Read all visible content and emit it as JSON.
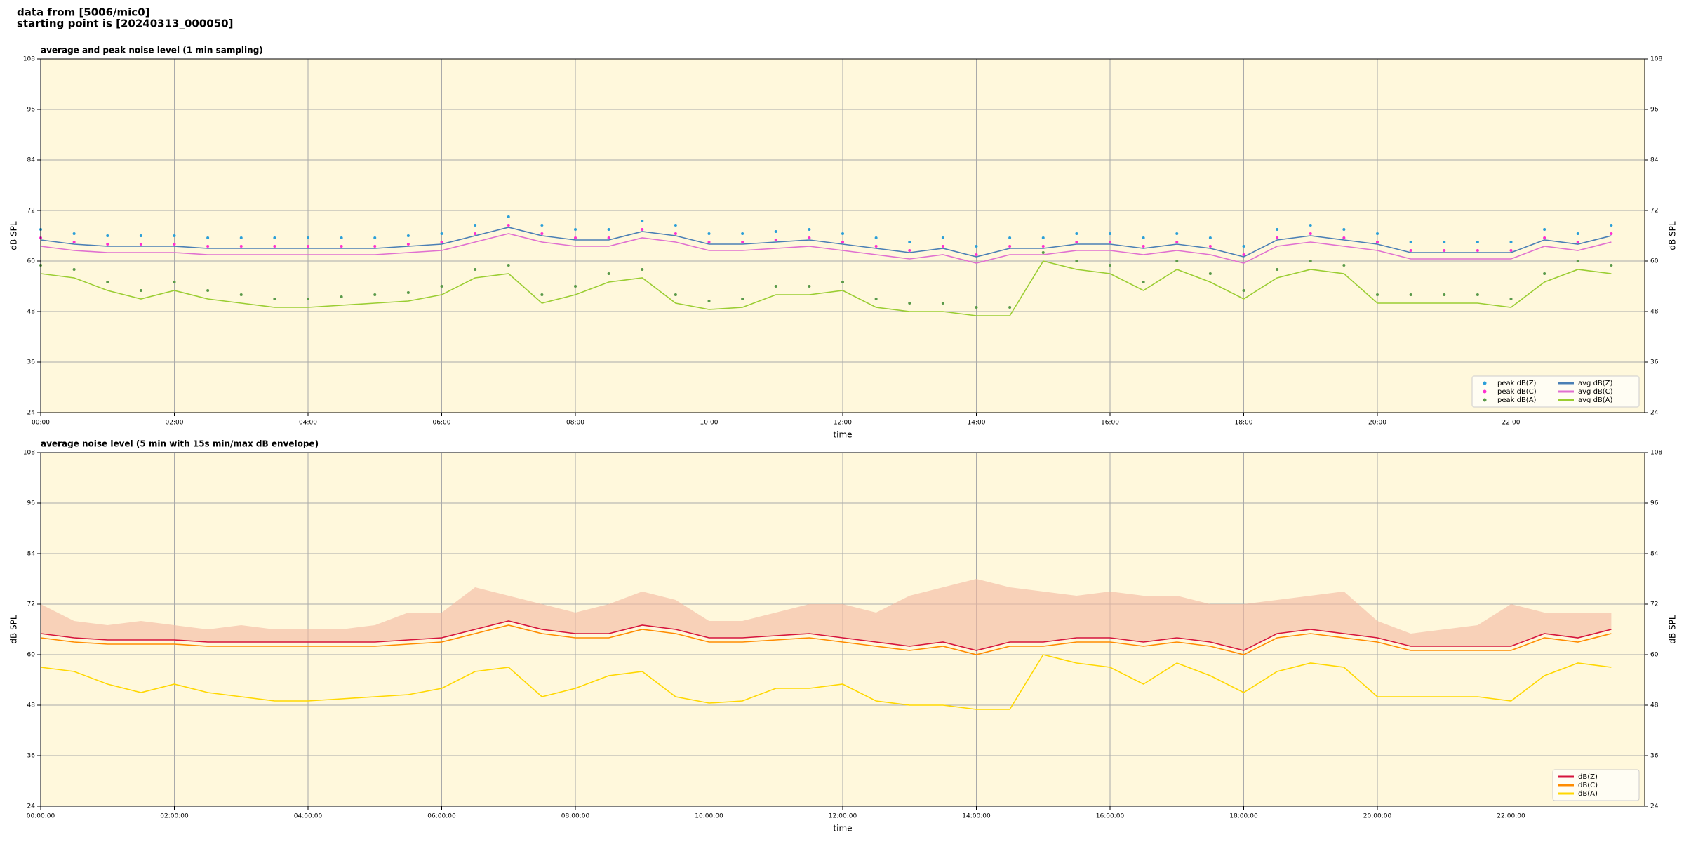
{
  "header": [
    "data from [5006/mic0]",
    "starting point is [20240313_000050]"
  ],
  "chart_data": [
    {
      "type": "line",
      "title": "average and peak noise level (1 min sampling)",
      "xlabel": "time",
      "ylabel": "dB SPL",
      "x": [
        0,
        0.5,
        1,
        1.5,
        2,
        2.5,
        3,
        3.5,
        4,
        4.5,
        5,
        5.5,
        6,
        6.5,
        7,
        7.5,
        8,
        8.5,
        9,
        9.5,
        10,
        10.5,
        11,
        11.5,
        12,
        12.5,
        13,
        13.5,
        14,
        14.5,
        15,
        15.5,
        16,
        16.5,
        17,
        17.5,
        18,
        18.5,
        19,
        19.5,
        20,
        20.5,
        21,
        21.5,
        22,
        22.5,
        23,
        23.5
      ],
      "xlim": [
        0,
        24
      ],
      "xticks": [
        {
          "value": 0,
          "label": "00:00"
        },
        {
          "value": 2,
          "label": "02:00"
        },
        {
          "value": 4,
          "label": "04:00"
        },
        {
          "value": 6,
          "label": "06:00"
        },
        {
          "value": 8,
          "label": "08:00"
        },
        {
          "value": 10,
          "label": "10:00"
        },
        {
          "value": 12,
          "label": "12:00"
        },
        {
          "value": 14,
          "label": "14:00"
        },
        {
          "value": 16,
          "label": "16:00"
        },
        {
          "value": 18,
          "label": "18:00"
        },
        {
          "value": 20,
          "label": "20:00"
        },
        {
          "value": 22,
          "label": "22:00"
        }
      ],
      "ylim": [
        24,
        108
      ],
      "yticks": [
        24,
        36,
        48,
        60,
        72,
        84,
        96,
        108
      ],
      "grid": true,
      "legend": "lower right",
      "series": [
        {
          "name": "peak dB(Z)",
          "kind": "scatter",
          "color": "#2b9fd8",
          "values": [
            67.5,
            66.5,
            66,
            66,
            66,
            65.5,
            65.5,
            65.5,
            65.5,
            65.5,
            65.5,
            66,
            66.5,
            68.5,
            70.5,
            68.5,
            67.5,
            67.5,
            69.5,
            68.5,
            66.5,
            66.5,
            67,
            67.5,
            66.5,
            65.5,
            64.5,
            65.5,
            63.5,
            65.5,
            65.5,
            66.5,
            66.5,
            65.5,
            66.5,
            65.5,
            63.5,
            67.5,
            68.5,
            67.5,
            66.5,
            64.5,
            64.5,
            64.5,
            64.5,
            67.5,
            66.5,
            68.5
          ]
        },
        {
          "name": "peak dB(C)",
          "kind": "scatter",
          "color": "#ff2fd0",
          "values": [
            65.5,
            64.5,
            64,
            64,
            64,
            63.5,
            63.5,
            63.5,
            63.5,
            63.5,
            63.5,
            64,
            64.5,
            66.5,
            68.5,
            66.5,
            65.5,
            65.5,
            67.5,
            66.5,
            64.5,
            64.5,
            65,
            65.5,
            64.5,
            63.5,
            62.5,
            63.5,
            61.5,
            63.5,
            63.5,
            64.5,
            64.5,
            63.5,
            64.5,
            63.5,
            61.5,
            65.5,
            66.5,
            65.5,
            64.5,
            62.5,
            62.5,
            62.5,
            62.5,
            65.5,
            64.5,
            66.5
          ]
        },
        {
          "name": "peak dB(A)",
          "kind": "scatter",
          "color": "#5a9a4a",
          "values": [
            59,
            58,
            55,
            53,
            55,
            53,
            52,
            51,
            51,
            51.5,
            52,
            52.5,
            54,
            58,
            59,
            52,
            54,
            57,
            58,
            52,
            50.5,
            51,
            54,
            54,
            55,
            51,
            50,
            50,
            49,
            49,
            62,
            60,
            59,
            55,
            60,
            57,
            53,
            58,
            60,
            59,
            52,
            52,
            52,
            52,
            51,
            57,
            60,
            59
          ]
        },
        {
          "name": "avg dB(Z)",
          "kind": "line",
          "color": "#4a7fb5",
          "values": [
            65,
            64,
            63.5,
            63.5,
            63.5,
            63,
            63,
            63,
            63,
            63,
            63,
            63.5,
            64,
            66,
            68,
            66,
            65,
            65,
            67,
            66,
            64,
            64,
            64.5,
            65,
            64,
            63,
            62,
            63,
            61,
            63,
            63,
            64,
            64,
            63,
            64,
            63,
            61,
            65,
            66,
            65,
            64,
            62,
            62,
            62,
            62,
            65,
            64,
            66
          ]
        },
        {
          "name": "avg dB(C)",
          "kind": "line",
          "color": "#e070d0",
          "values": [
            63.5,
            62.5,
            62,
            62,
            62,
            61.5,
            61.5,
            61.5,
            61.5,
            61.5,
            61.5,
            62,
            62.5,
            64.5,
            66.5,
            64.5,
            63.5,
            63.5,
            65.5,
            64.5,
            62.5,
            62.5,
            63,
            63.5,
            62.5,
            61.5,
            60.5,
            61.5,
            59.5,
            61.5,
            61.5,
            62.5,
            62.5,
            61.5,
            62.5,
            61.5,
            59.5,
            63.5,
            64.5,
            63.5,
            62.5,
            60.5,
            60.5,
            60.5,
            60.5,
            63.5,
            62.5,
            64.5
          ]
        },
        {
          "name": "avg dB(A)",
          "kind": "line",
          "color": "#9acd32",
          "values": [
            57,
            56,
            53,
            51,
            53,
            51,
            50,
            49,
            49,
            49.5,
            50,
            50.5,
            52,
            56,
            57,
            50,
            52,
            55,
            56,
            50,
            48.5,
            49,
            52,
            52,
            53,
            49,
            48,
            48,
            47,
            47,
            60,
            58,
            57,
            53,
            58,
            55,
            51,
            56,
            58,
            57,
            50,
            50,
            50,
            50,
            49,
            55,
            58,
            57
          ]
        }
      ]
    },
    {
      "type": "line",
      "title": "average noise level (5 min with 15s min/max dB envelope)",
      "xlabel": "time",
      "ylabel": "dB SPL",
      "x": [
        0,
        0.5,
        1,
        1.5,
        2,
        2.5,
        3,
        3.5,
        4,
        4.5,
        5,
        5.5,
        6,
        6.5,
        7,
        7.5,
        8,
        8.5,
        9,
        9.5,
        10,
        10.5,
        11,
        11.5,
        12,
        12.5,
        13,
        13.5,
        14,
        14.5,
        15,
        15.5,
        16,
        16.5,
        17,
        17.5,
        18,
        18.5,
        19,
        19.5,
        20,
        20.5,
        21,
        21.5,
        22,
        22.5,
        23,
        23.5
      ],
      "xlim": [
        0,
        24
      ],
      "xticks": [
        {
          "value": 0,
          "label": "00:00:00"
        },
        {
          "value": 2,
          "label": "02:00:00"
        },
        {
          "value": 4,
          "label": "04:00:00"
        },
        {
          "value": 6,
          "label": "06:00:00"
        },
        {
          "value": 8,
          "label": "08:00:00"
        },
        {
          "value": 10,
          "label": "10:00:00"
        },
        {
          "value": 12,
          "label": "12:00:00"
        },
        {
          "value": 14,
          "label": "14:00:00"
        },
        {
          "value": 16,
          "label": "16:00:00"
        },
        {
          "value": 18,
          "label": "18:00:00"
        },
        {
          "value": 20,
          "label": "20:00:00"
        },
        {
          "value": 22,
          "label": "22:00:00"
        }
      ],
      "ylim": [
        24,
        108
      ],
      "yticks": [
        24,
        36,
        48,
        60,
        72,
        84,
        96,
        108
      ],
      "grid": true,
      "legend": "lower right",
      "envelope": {
        "color": "#f4b8a0",
        "max": [
          72,
          68,
          67,
          68,
          67,
          66,
          67,
          66,
          66,
          66,
          67,
          70,
          70,
          76,
          74,
          72,
          70,
          72,
          75,
          73,
          68,
          68,
          70,
          72,
          72,
          70,
          74,
          76,
          78,
          76,
          75,
          74,
          75,
          74,
          74,
          72,
          72,
          73,
          74,
          75,
          68,
          65,
          66,
          67,
          72,
          70,
          70,
          70
        ]
      },
      "series": [
        {
          "name": "dB(Z)",
          "kind": "line",
          "color": "#d6143c",
          "values": [
            65,
            64,
            63.5,
            63.5,
            63.5,
            63,
            63,
            63,
            63,
            63,
            63,
            63.5,
            64,
            66,
            68,
            66,
            65,
            65,
            67,
            66,
            64,
            64,
            64.5,
            65,
            64,
            63,
            62,
            63,
            61,
            63,
            63,
            64,
            64,
            63,
            64,
            63,
            61,
            65,
            66,
            65,
            64,
            62,
            62,
            62,
            62,
            65,
            64,
            66
          ]
        },
        {
          "name": "dB(C)",
          "kind": "line",
          "color": "#ff8c00",
          "values": [
            64,
            63,
            62.5,
            62.5,
            62.5,
            62,
            62,
            62,
            62,
            62,
            62,
            62.5,
            63,
            65,
            67,
            65,
            64,
            64,
            66,
            65,
            63,
            63,
            63.5,
            64,
            63,
            62,
            61,
            62,
            60,
            62,
            62,
            63,
            63,
            62,
            63,
            62,
            60,
            64,
            65,
            64,
            63,
            61,
            61,
            61,
            61,
            64,
            63,
            65
          ]
        },
        {
          "name": "dB(A)",
          "kind": "line",
          "color": "#ffd700",
          "values": [
            57,
            56,
            53,
            51,
            53,
            51,
            50,
            49,
            49,
            49.5,
            50,
            50.5,
            52,
            56,
            57,
            50,
            52,
            55,
            56,
            50,
            48.5,
            49,
            52,
            52,
            53,
            49,
            48,
            48,
            47,
            47,
            60,
            58,
            57,
            53,
            58,
            55,
            51,
            56,
            58,
            57,
            50,
            50,
            50,
            50,
            49,
            55,
            58,
            57
          ]
        }
      ]
    }
  ]
}
